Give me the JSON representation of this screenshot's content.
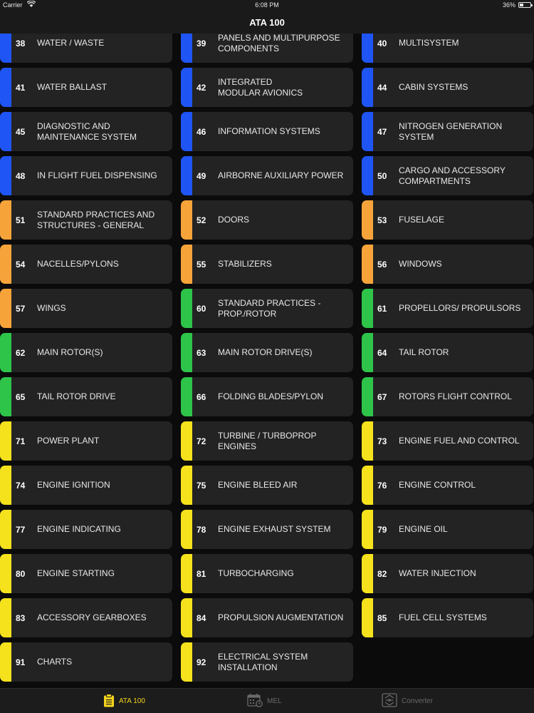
{
  "status_bar": {
    "carrier": "Carrier",
    "time": "6:08 PM",
    "battery": "36%"
  },
  "header": {
    "title": "ATA 100"
  },
  "colors": {
    "blue": "#1f55f5",
    "orange": "#f6a43a",
    "green": "#2ec44a",
    "yellow": "#f5e21c",
    "tile_bg": "#232323",
    "background": "#0b0b0b",
    "tab_active": "#f3d21e"
  },
  "items": [
    {
      "code": "38",
      "title": "WATER / WASTE",
      "color": "blue"
    },
    {
      "code": "39",
      "title": "PANELS AND MULTIPURPOSE\nCOMPONENTS",
      "color": "blue"
    },
    {
      "code": "40",
      "title": "MULTISYSTEM",
      "color": "blue"
    },
    {
      "code": "41",
      "title": "WATER BALLAST",
      "color": "blue"
    },
    {
      "code": "42",
      "title": "INTEGRATED\nMODULAR AVIONICS",
      "color": "blue"
    },
    {
      "code": "44",
      "title": "CABIN SYSTEMS",
      "color": "blue"
    },
    {
      "code": "45",
      "title": "DIAGNOSTIC AND\nMAINTENANCE SYSTEM",
      "color": "blue"
    },
    {
      "code": "46",
      "title": "INFORMATION SYSTEMS",
      "color": "blue"
    },
    {
      "code": "47",
      "title": "NITROGEN GENERATION\nSYSTEM",
      "color": "blue"
    },
    {
      "code": "48",
      "title": "IN FLIGHT FUEL DISPENSING",
      "color": "blue"
    },
    {
      "code": "49",
      "title": "AIRBORNE AUXILIARY POWER",
      "color": "blue"
    },
    {
      "code": "50",
      "title": "CARGO AND ACCESSORY\nCOMPARTMENTS",
      "color": "blue"
    },
    {
      "code": "51",
      "title": "STANDARD PRACTICES AND\nSTRUCTURES - GENERAL",
      "color": "orange"
    },
    {
      "code": "52",
      "title": "DOORS",
      "color": "orange"
    },
    {
      "code": "53",
      "title": "FUSELAGE",
      "color": "orange"
    },
    {
      "code": "54",
      "title": "NACELLES/PYLONS",
      "color": "orange"
    },
    {
      "code": "55",
      "title": "STABILIZERS",
      "color": "orange"
    },
    {
      "code": "56",
      "title": "WINDOWS",
      "color": "orange"
    },
    {
      "code": "57",
      "title": "WINGS",
      "color": "orange"
    },
    {
      "code": "60",
      "title": "STANDARD PRACTICES -\nPROP./ROTOR",
      "color": "green"
    },
    {
      "code": "61",
      "title": "PROPELLORS/ PROPULSORS",
      "color": "green"
    },
    {
      "code": "62",
      "title": "MAIN ROTOR(S)",
      "color": "green"
    },
    {
      "code": "63",
      "title": "MAIN ROTOR DRIVE(S)",
      "color": "green"
    },
    {
      "code": "64",
      "title": "TAIL ROTOR",
      "color": "green"
    },
    {
      "code": "65",
      "title": "TAIL ROTOR DRIVE",
      "color": "green"
    },
    {
      "code": "66",
      "title": "FOLDING BLADES/PYLON",
      "color": "green"
    },
    {
      "code": "67",
      "title": "ROTORS FLIGHT CONTROL",
      "color": "green"
    },
    {
      "code": "71",
      "title": "POWER PLANT",
      "color": "yellow"
    },
    {
      "code": "72",
      "title": "TURBINE / TURBOPROP\nENGINES",
      "color": "yellow"
    },
    {
      "code": "73",
      "title": "ENGINE FUEL AND CONTROL",
      "color": "yellow"
    },
    {
      "code": "74",
      "title": "ENGINE IGNITION",
      "color": "yellow"
    },
    {
      "code": "75",
      "title": "ENGINE BLEED AIR",
      "color": "yellow"
    },
    {
      "code": "76",
      "title": "ENGINE CONTROL",
      "color": "yellow"
    },
    {
      "code": "77",
      "title": "ENGINE INDICATING",
      "color": "yellow"
    },
    {
      "code": "78",
      "title": "ENGINE EXHAUST SYSTEM",
      "color": "yellow"
    },
    {
      "code": "79",
      "title": "ENGINE OIL",
      "color": "yellow"
    },
    {
      "code": "80",
      "title": "ENGINE STARTING",
      "color": "yellow"
    },
    {
      "code": "81",
      "title": "TURBOCHARGING",
      "color": "yellow"
    },
    {
      "code": "82",
      "title": "WATER INJECTION",
      "color": "yellow"
    },
    {
      "code": "83",
      "title": "ACCESSORY GEARBOXES",
      "color": "yellow"
    },
    {
      "code": "84",
      "title": "PROPULSION AUGMENTATION",
      "color": "yellow"
    },
    {
      "code": "85",
      "title": "FUEL CELL SYSTEMS",
      "color": "yellow"
    },
    {
      "code": "91",
      "title": "CHARTS",
      "color": "yellow"
    },
    {
      "code": "92",
      "title": "ELECTRICAL SYSTEM\nINSTALLATION",
      "color": "yellow"
    }
  ],
  "tabs": [
    {
      "label": "ATA 100",
      "icon": "clipboard-icon",
      "active": true
    },
    {
      "label": "MEL",
      "icon": "calendar-icon",
      "active": false
    },
    {
      "label": "Converter",
      "icon": "converter-icon",
      "active": false
    }
  ]
}
